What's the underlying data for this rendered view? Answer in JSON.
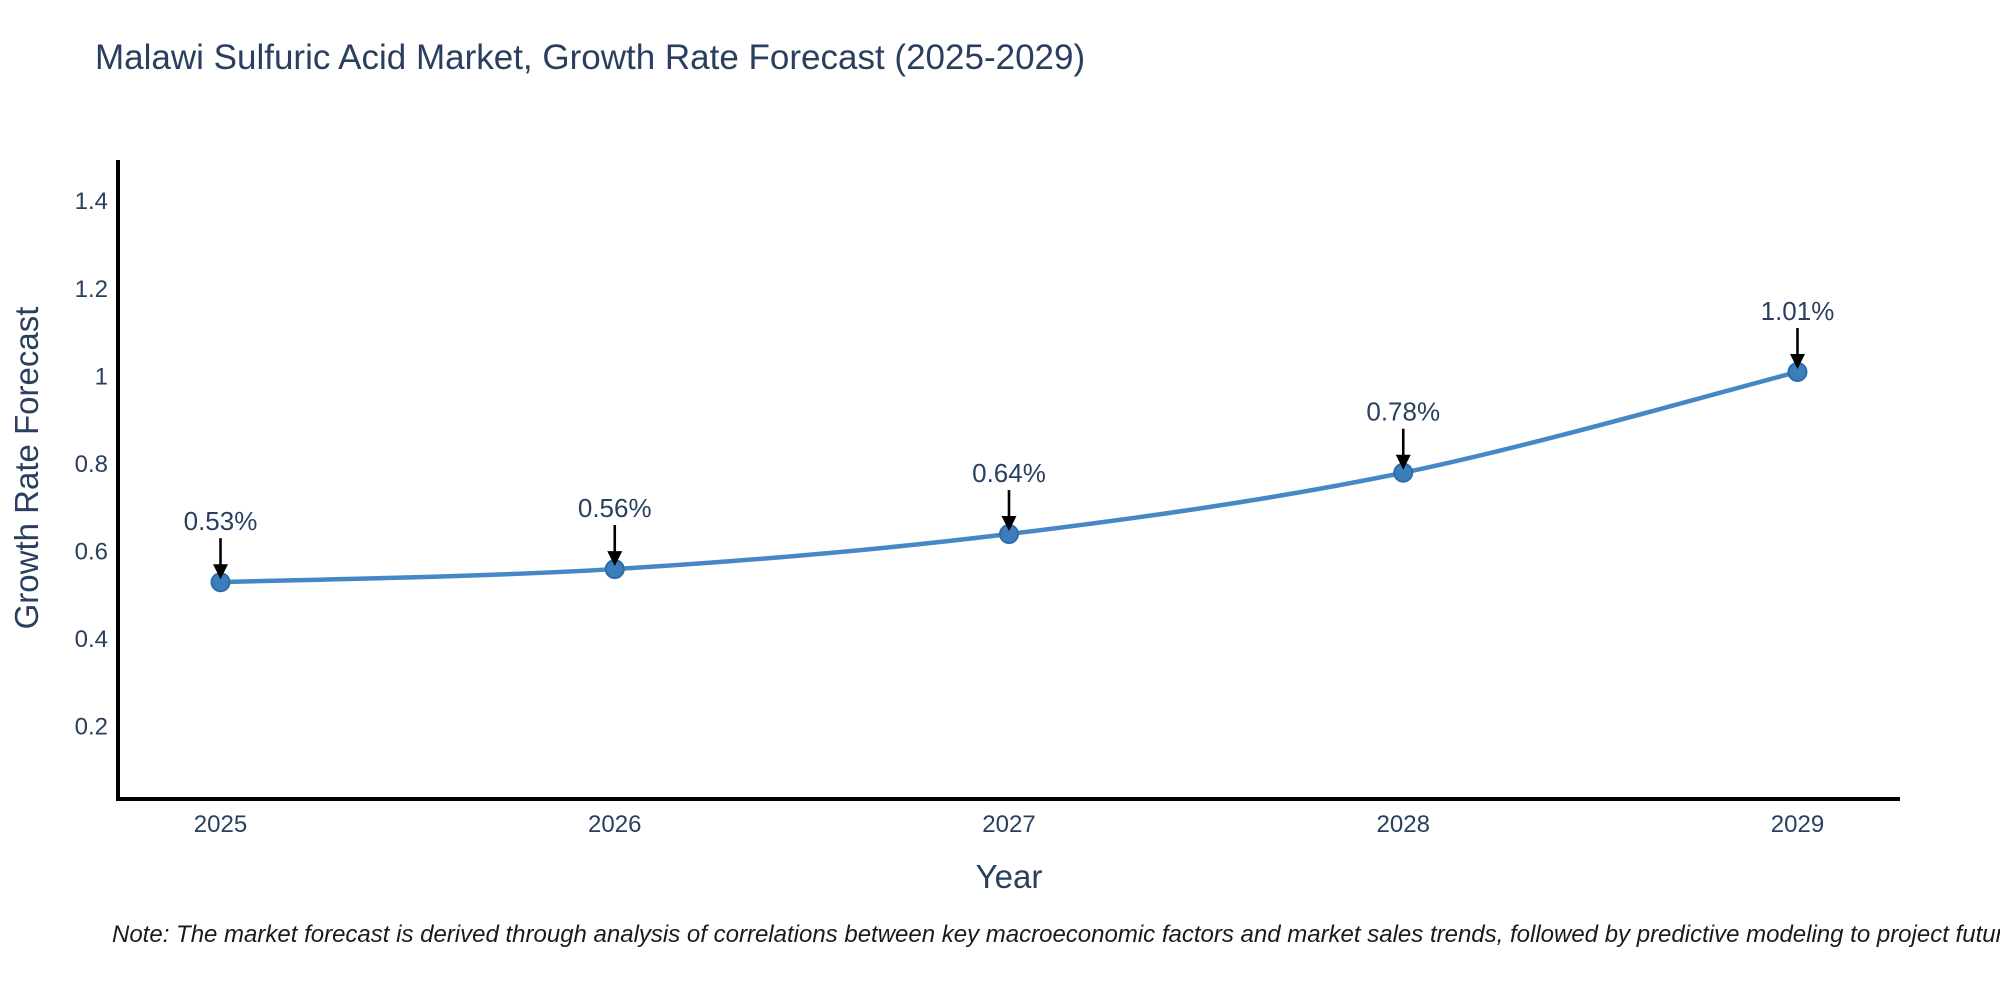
{
  "figure": {
    "note": "Note: The market forecast is derived through analysis of correlations between key macroeconomic factors and market sales trends, followed by predictive modeling to project future sales"
  },
  "chart_data": {
    "type": "line",
    "title": "Malawi Sulfuric Acid Market, Growth Rate Forecast (2025-2029)",
    "xlabel": "Year",
    "ylabel": "Growth Rate Forecast",
    "x": [
      2025,
      2026,
      2027,
      2028,
      2029
    ],
    "values": [
      0.53,
      0.56,
      0.64,
      0.78,
      1.01
    ],
    "point_labels": [
      "0.53%",
      "0.56%",
      "0.64%",
      "0.78%",
      "1.01%"
    ],
    "xtick_labels": [
      "2025",
      "2026",
      "2027",
      "2028",
      "2029"
    ],
    "yticks": [
      0.2,
      0.4,
      0.6,
      0.8,
      1,
      1.2,
      1.4
    ],
    "ytick_labels": [
      "0.2",
      "0.4",
      "0.6",
      "0.8",
      "1",
      "1.2",
      "1.4"
    ],
    "xlim": [
      2024.74,
      2029.26
    ],
    "ylim": [
      0.035,
      1.494
    ],
    "grid": false,
    "legend": false,
    "colors": {
      "line": "#4687c5",
      "marker_fill": "#3c7ebc",
      "marker_edge": "#2e6ca8",
      "axis": "#000000",
      "tick_text": "#2a3f5f",
      "annotation_text": "#2a3f5f",
      "arrow": "#000000",
      "title_text": "#2a3f5f"
    }
  }
}
